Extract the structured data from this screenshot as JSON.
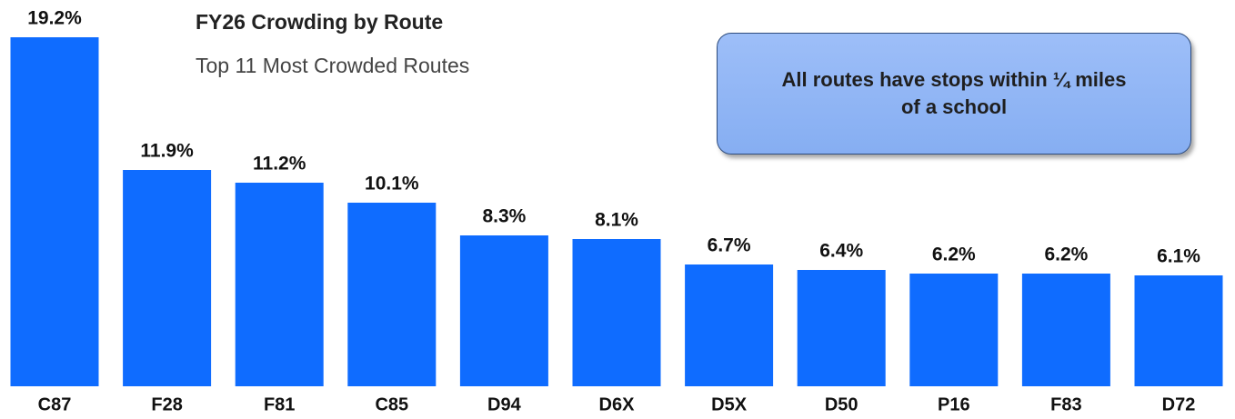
{
  "chart_data": {
    "type": "bar",
    "title": "FY26 Crowding by Route",
    "subtitle": "Top 11 Most Crowded Routes",
    "annotation": "All routes have stops within ¼ miles of a school",
    "categories": [
      "C87",
      "F28",
      "F81",
      "C85",
      "D94",
      "D6X",
      "D5X",
      "D50",
      "P16",
      "F83",
      "D72"
    ],
    "values": [
      19.2,
      11.9,
      11.2,
      10.1,
      8.3,
      8.1,
      6.7,
      6.4,
      6.2,
      6.2,
      6.1
    ],
    "value_labels": [
      "19.2%",
      "11.9%",
      "11.2%",
      "10.1%",
      "8.3%",
      "8.1%",
      "6.7%",
      "6.4%",
      "6.2%",
      "6.2%",
      "6.1%"
    ],
    "color": "#0f6cff"
  }
}
